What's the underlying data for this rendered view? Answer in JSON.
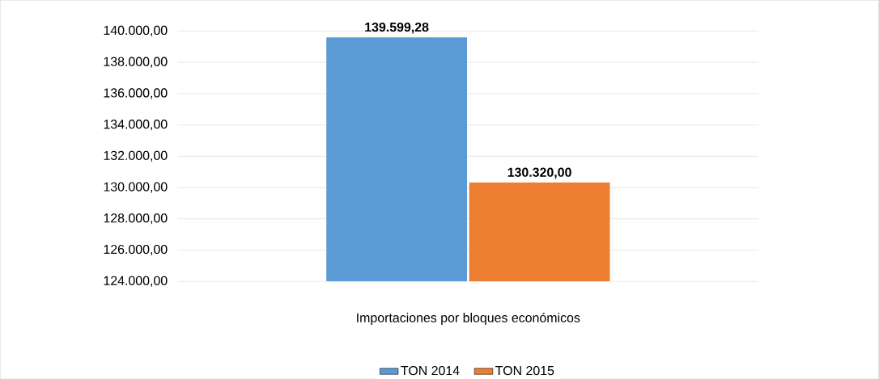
{
  "chart_data": {
    "type": "bar",
    "categories": [
      "Importaciones por bloques económicos"
    ],
    "series": [
      {
        "name": "TON 2014",
        "color": "#5b9bd5",
        "values": [
          139599.28
        ],
        "value_labels": [
          "139.599,28"
        ]
      },
      {
        "name": "TON 2015",
        "color": "#ed7d31",
        "values": [
          130320.0
        ],
        "value_labels": [
          "130.320,00"
        ]
      }
    ],
    "ylim": [
      124000,
      140000
    ],
    "yticks": [
      {
        "value": 124000,
        "label": "124.000,00"
      },
      {
        "value": 126000,
        "label": "126.000,00"
      },
      {
        "value": 128000,
        "label": "128.000,00"
      },
      {
        "value": 130000,
        "label": "130.000,00"
      },
      {
        "value": 132000,
        "label": "132.000,00"
      },
      {
        "value": 134000,
        "label": "134.000,00"
      },
      {
        "value": 136000,
        "label": "136.000,00"
      },
      {
        "value": 138000,
        "label": "138.000,00"
      },
      {
        "value": 140000,
        "label": "140.000,00"
      }
    ],
    "grid": "y",
    "legend": "bottom"
  }
}
